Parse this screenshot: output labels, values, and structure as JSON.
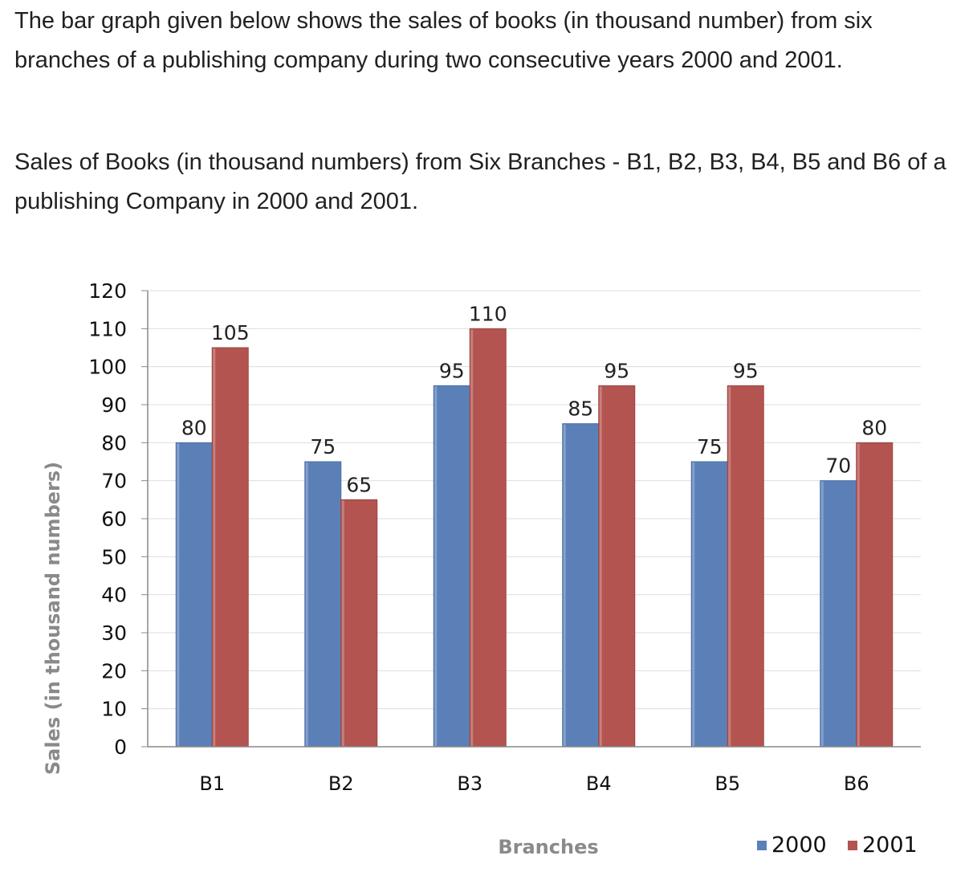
{
  "intro_text": "The bar graph given below shows the sales of books (in thousand number) from six branches of a publishing company during two consecutive years 2000 and 2001.",
  "caption_text": "Sales of Books (in thousand numbers) from Six Branches - B1, B2, B3, B4, B5 and B6 of a publishing Company in 2000 and 2001.",
  "colors": {
    "s2000": "#5b80b8",
    "s2001": "#b35450",
    "grid": "#dddddd",
    "axis": "#888888"
  },
  "chart_data": {
    "type": "bar",
    "categories": [
      "B1",
      "B2",
      "B3",
      "B4",
      "B5",
      "B6"
    ],
    "series": [
      {
        "name": "2000",
        "values": [
          80,
          75,
          95,
          85,
          75,
          70
        ]
      },
      {
        "name": "2001",
        "values": [
          105,
          65,
          110,
          95,
          95,
          80
        ]
      }
    ],
    "xlabel": "Branches",
    "ylabel": "Sales (in thousand numbers)",
    "ylim": [
      0,
      120
    ],
    "yticks": [
      0,
      10,
      20,
      30,
      40,
      50,
      60,
      70,
      80,
      90,
      100,
      110,
      120
    ],
    "grid": true,
    "legend": "bottom-right",
    "data_labels": true
  }
}
